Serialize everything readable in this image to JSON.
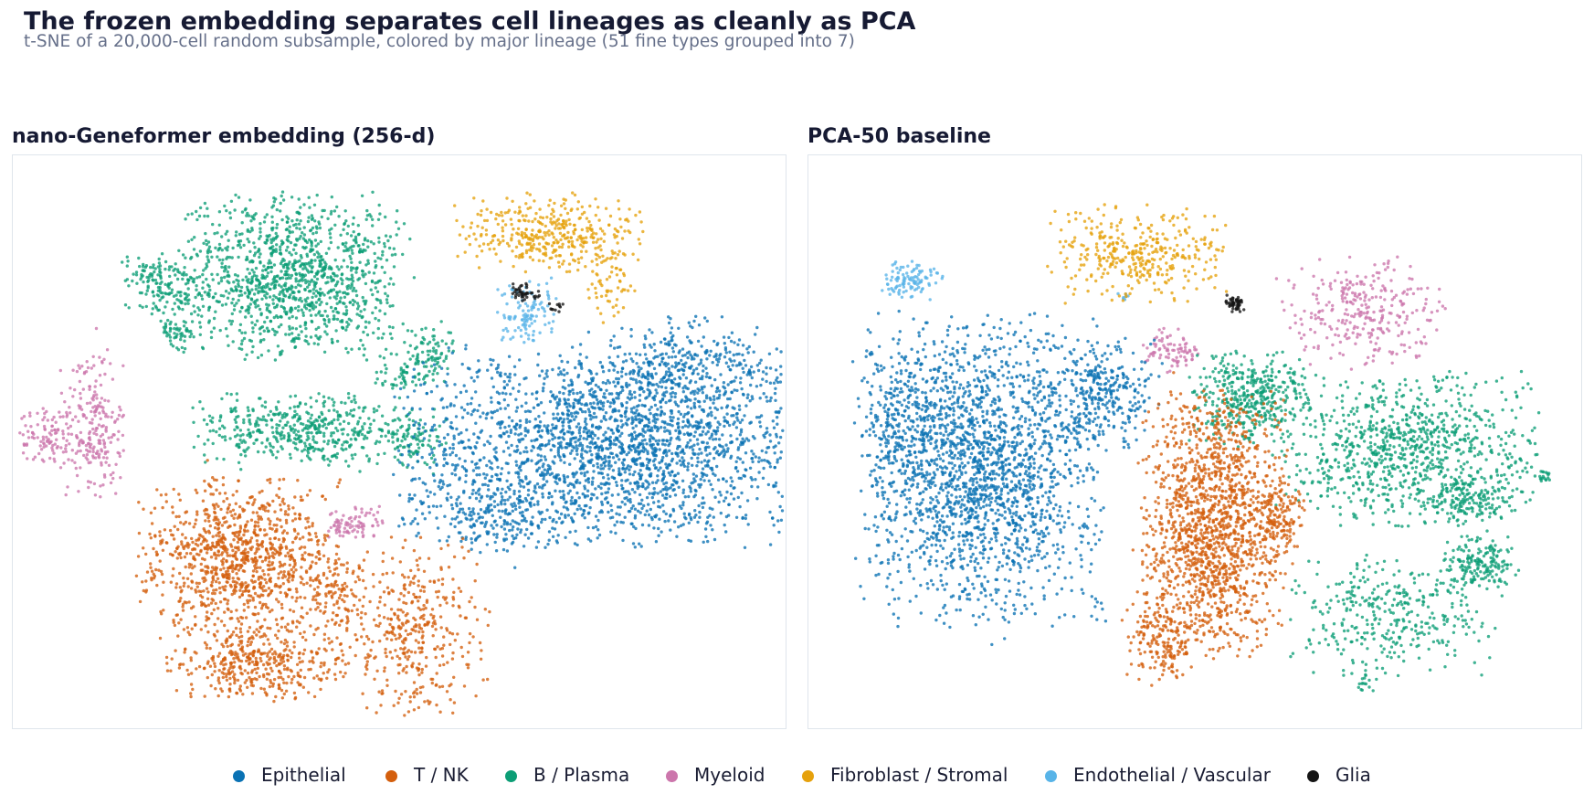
{
  "header": {
    "title": "The frozen embedding separates cell lineages as cleanly as PCA",
    "subtitle": "t-SNE of a 20,000-cell random subsample, colored by major lineage (51 fine types grouped into 7)"
  },
  "colors": {
    "Epithelial": "#0a72b4",
    "T / NK": "#d45f0d",
    "B / Plasma": "#0c9e76",
    "Myeloid": "#cc76ac",
    "Fibroblast / Stromal": "#e6a10c",
    "Endothelial / Vascular": "#58b4e8",
    "Glia": "#151515"
  },
  "chart_data": [
    {
      "type": "scatter",
      "title": "nano-Geneformer embedding  (256-d)",
      "xlabel": "",
      "ylabel": "",
      "axes_visible": false,
      "grid": false,
      "clusters": [
        {
          "lineage": "B / Plasma",
          "cx": -23,
          "cy": 30,
          "sx": 11,
          "sy": 9,
          "n": 1700
        },
        {
          "lineage": "B / Plasma",
          "cx": -50,
          "cy": 29,
          "sx": 4,
          "sy": 3.5,
          "n": 240
        },
        {
          "lineage": "B / Plasma",
          "cx": -47,
          "cy": 16.5,
          "sx": 1.8,
          "sy": 2,
          "n": 80
        },
        {
          "lineage": "B / Plasma",
          "cx": 6.5,
          "cy": 12,
          "sx": 2.5,
          "sy": 3.2,
          "n": 130
        },
        {
          "lineage": "B / Plasma",
          "cx": 0,
          "cy": 6,
          "sx": 2.5,
          "sy": 1.5,
          "n": 60
        },
        {
          "lineage": "B / Plasma",
          "cx": -20,
          "cy": -6,
          "sx": 11,
          "sy": 4,
          "n": 700
        },
        {
          "lineage": "B / Plasma",
          "cx": 4,
          "cy": -9,
          "sx": 3,
          "sy": 4,
          "n": 120
        },
        {
          "lineage": "Myeloid",
          "cx": -65,
          "cy": -5,
          "sx": 3.2,
          "sy": 8,
          "n": 330
        },
        {
          "lineage": "Myeloid",
          "cx": -75,
          "cy": -8,
          "sx": 2.5,
          "sy": 3,
          "n": 130
        },
        {
          "lineage": "Myeloid",
          "cx": -10,
          "cy": -28,
          "sx": 3.2,
          "sy": 2,
          "n": 120
        },
        {
          "lineage": "Fibroblast / Stromal",
          "cx": 32,
          "cy": 40.5,
          "sx": 9,
          "sy": 4.5,
          "n": 560
        },
        {
          "lineage": "Fibroblast / Stromal",
          "cx": 45,
          "cy": 28,
          "sx": 2.5,
          "sy": 4,
          "n": 80
        },
        {
          "lineage": "Endothelial / Vascular",
          "cx": 27,
          "cy": 22,
          "sx": 3,
          "sy": 4,
          "n": 160
        },
        {
          "lineage": "Glia",
          "cx": 26.5,
          "cy": 26.5,
          "sx": 1.8,
          "sy": 1,
          "n": 60
        },
        {
          "lineage": "Glia",
          "cx": 33,
          "cy": 23,
          "sx": 0.8,
          "sy": 0.5,
          "n": 15
        },
        {
          "lineage": "Epithelial",
          "cx": 46,
          "cy": -10,
          "sx": 21,
          "sy": 11,
          "n": 3200
        },
        {
          "lineage": "Epithelial",
          "cx": 60,
          "cy": 8,
          "sx": 10,
          "sy": 6,
          "n": 500
        },
        {
          "lineage": "Epithelial",
          "cx": 20,
          "cy": -25,
          "sx": 8,
          "sy": 5,
          "n": 350
        },
        {
          "lineage": "T / NK",
          "cx": -34,
          "cy": -37,
          "sx": 10,
          "sy": 9,
          "n": 1500
        },
        {
          "lineage": "T / NK",
          "cx": -30,
          "cy": -62,
          "sx": 9,
          "sy": 4,
          "n": 550
        },
        {
          "lineage": "T / NK",
          "cx": 2,
          "cy": -53,
          "sx": 8,
          "sy": 10,
          "n": 600
        },
        {
          "lineage": "T / NK",
          "cx": -14,
          "cy": -45,
          "sx": 3.5,
          "sy": 4,
          "n": 120
        }
      ],
      "xlim": [
        -80,
        80
      ],
      "ylim": [
        -75,
        57
      ]
    },
    {
      "type": "scatter",
      "title": "PCA-50 baseline",
      "xlabel": "",
      "ylabel": "",
      "axes_visible": false,
      "grid": false,
      "clusters": [
        {
          "lineage": "Endothelial / Vascular",
          "cx": -60,
          "cy": 31,
          "sx": 3,
          "sy": 2.2,
          "n": 150
        },
        {
          "lineage": "Endothelial / Vascular",
          "cx": -15,
          "cy": 27.5,
          "sx": 0.7,
          "sy": 0.7,
          "n": 10
        },
        {
          "lineage": "Fibroblast / Stromal",
          "cx": -12,
          "cy": 37,
          "sx": 9,
          "sy": 5,
          "n": 520
        },
        {
          "lineage": "Glia",
          "cx": 8.5,
          "cy": 25.5,
          "sx": 1,
          "sy": 1,
          "n": 70
        },
        {
          "lineage": "Myeloid",
          "cx": 36,
          "cy": 24,
          "sx": 8,
          "sy": 6,
          "n": 420
        },
        {
          "lineage": "Myeloid",
          "cx": -5,
          "cy": 15,
          "sx": 2.8,
          "sy": 2.3,
          "n": 120
        },
        {
          "lineage": "Epithelial",
          "cx": -45,
          "cy": -12,
          "sx": 12,
          "sy": 16,
          "n": 2800
        },
        {
          "lineage": "Epithelial",
          "cx": -20,
          "cy": 5,
          "sx": 6,
          "sy": 6,
          "n": 450
        },
        {
          "lineage": "Epithelial",
          "cx": -60,
          "cy": 0,
          "sx": 5,
          "sy": 8,
          "n": 400
        },
        {
          "lineage": "B / Plasma",
          "cx": 12,
          "cy": 4,
          "sx": 6,
          "sy": 5,
          "n": 600
        },
        {
          "lineage": "B / Plasma",
          "cx": 45,
          "cy": -7,
          "sx": 13,
          "sy": 8,
          "n": 1300
        },
        {
          "lineage": "B / Plasma",
          "cx": 42,
          "cy": -45,
          "sx": 10,
          "sy": 6,
          "n": 500
        },
        {
          "lineage": "B / Plasma",
          "cx": 60,
          "cy": -33,
          "sx": 4,
          "sy": 3,
          "n": 250
        },
        {
          "lineage": "B / Plasma",
          "cx": 59,
          "cy": -19,
          "sx": 4,
          "sy": 2.5,
          "n": 200
        },
        {
          "lineage": "B / Plasma",
          "cx": 36,
          "cy": -60,
          "sx": 1,
          "sy": 1,
          "n": 20
        },
        {
          "lineage": "B / Plasma",
          "cx": 74,
          "cy": -13,
          "sx": 0.9,
          "sy": 0.7,
          "n": 25
        },
        {
          "lineage": "T / NK",
          "cx": 4,
          "cy": -24,
          "sx": 7,
          "sy": 14,
          "n": 2200
        },
        {
          "lineage": "T / NK",
          "cx": 19,
          "cy": -22,
          "sx": 2,
          "sy": 4,
          "n": 150
        },
        {
          "lineage": "T / NK",
          "cx": -8,
          "cy": -50,
          "sx": 3.5,
          "sy": 5,
          "n": 250
        }
      ],
      "xlim": [
        -80,
        80
      ],
      "ylim": [
        -68,
        57
      ]
    }
  ],
  "legend": {
    "placement": "bottom-center",
    "items": [
      {
        "label": "Epithelial",
        "color": "#0a72b4"
      },
      {
        "label": "T / NK",
        "color": "#d45f0d"
      },
      {
        "label": "B / Plasma",
        "color": "#0c9e76"
      },
      {
        "label": "Myeloid",
        "color": "#cc76ac"
      },
      {
        "label": "Fibroblast / Stromal",
        "color": "#e6a10c"
      },
      {
        "label": "Endothelial / Vascular",
        "color": "#58b4e8"
      },
      {
        "label": "Glia",
        "color": "#151515"
      }
    ]
  }
}
